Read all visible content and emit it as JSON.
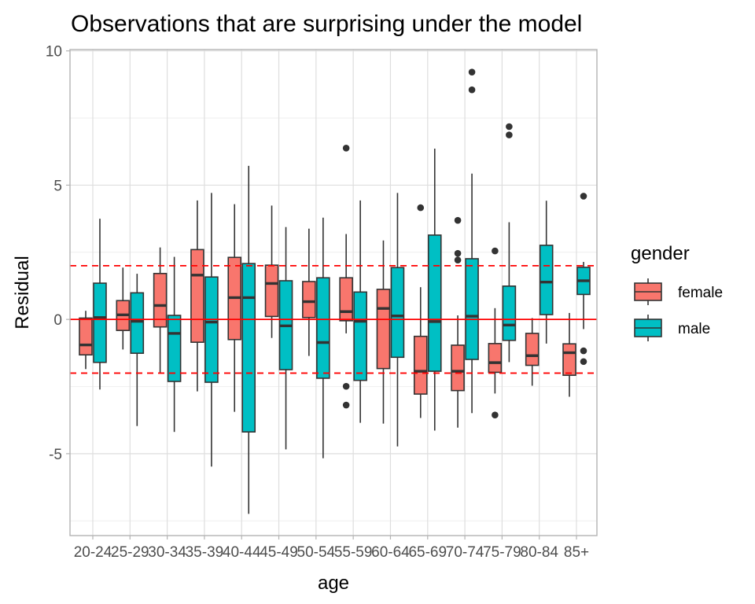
{
  "chart_data": {
    "type": "boxplot",
    "title": "Observations that are surprising under the model",
    "xlabel": "age",
    "ylabel": "Residual",
    "ylim": [
      -8.05,
      10.05
    ],
    "yticks": [
      10,
      5,
      0,
      -5
    ],
    "ytick_labels": [
      "10",
      "5",
      "0",
      "-5"
    ],
    "y_minor_gridlines": [
      7.5,
      2.5,
      -2.5,
      -7.5
    ],
    "grid": true,
    "reference_lines": [
      {
        "value": 0,
        "style": "solid",
        "color": "#ff0000"
      },
      {
        "value": 2,
        "style": "dashed",
        "color": "#ff0000"
      },
      {
        "value": -2,
        "style": "dashed",
        "color": "#ff0000"
      }
    ],
    "categories": [
      "20-24",
      "25-29",
      "30-34",
      "35-39",
      "40-44",
      "45-49",
      "50-54",
      "55-59",
      "60-64",
      "65-69",
      "70-74",
      "75-79",
      "80-84",
      "85+"
    ],
    "legend": {
      "title": "gender",
      "placement": "right",
      "entries": [
        {
          "label": "female",
          "color": "#f8766d"
        },
        {
          "label": "male",
          "color": "#00bfc4"
        }
      ]
    },
    "series": [
      {
        "name": "female",
        "color": "#f8766d",
        "boxes": [
          {
            "whisker_high": 0.32,
            "q3": 0.05,
            "median": -0.95,
            "q1": -1.32,
            "whisker_low": -1.85,
            "outliers": []
          },
          {
            "whisker_high": 1.93,
            "q3": 0.7,
            "median": 0.17,
            "q1": -0.41,
            "whisker_low": -1.12,
            "outliers": []
          },
          {
            "whisker_high": 2.68,
            "q3": 1.71,
            "median": 0.52,
            "q1": -0.28,
            "whisker_low": -2.0,
            "outliers": []
          },
          {
            "whisker_high": 4.43,
            "q3": 2.6,
            "median": 1.65,
            "q1": -0.85,
            "whisker_low": -2.68,
            "outliers": []
          },
          {
            "whisker_high": 4.29,
            "q3": 2.31,
            "median": 0.81,
            "q1": -0.75,
            "whisker_low": -3.44,
            "outliers": []
          },
          {
            "whisker_high": 4.24,
            "q3": 2.02,
            "median": 1.34,
            "q1": 0.11,
            "whisker_low": -0.69,
            "outliers": []
          },
          {
            "whisker_high": 3.38,
            "q3": 1.41,
            "median": 0.66,
            "q1": 0.07,
            "whisker_low": -1.36,
            "outliers": []
          },
          {
            "whisker_high": 3.18,
            "q3": 1.55,
            "median": 0.29,
            "q1": -0.05,
            "whisker_low": -0.52,
            "outliers": [
              6.38,
              -2.49,
              -3.19
            ]
          },
          {
            "whisker_high": 2.94,
            "q3": 1.12,
            "median": 0.41,
            "q1": -1.83,
            "whisker_low": -3.88,
            "outliers": []
          },
          {
            "whisker_high": 1.2,
            "q3": -0.63,
            "median": -1.93,
            "q1": -2.78,
            "whisker_low": -3.67,
            "outliers": [
              4.16
            ]
          },
          {
            "whisker_high": 0.15,
            "q3": -0.96,
            "median": -1.93,
            "q1": -2.65,
            "whisker_low": -4.03,
            "outliers": [
              3.69,
              2.46,
              2.21
            ]
          },
          {
            "whisker_high": 0.42,
            "q3": -0.9,
            "median": -1.61,
            "q1": -1.97,
            "whisker_low": -2.76,
            "outliers": [
              2.55,
              -3.56
            ]
          },
          {
            "whisker_high": 0.05,
            "q3": -0.52,
            "median": -1.35,
            "q1": -1.71,
            "whisker_low": -2.47,
            "outliers": []
          },
          {
            "whisker_high": 0.24,
            "q3": -0.91,
            "median": -1.24,
            "q1": -2.08,
            "whisker_low": -2.88,
            "outliers": []
          }
        ]
      },
      {
        "name": "male",
        "color": "#00bfc4",
        "boxes": [
          {
            "whisker_high": 3.75,
            "q3": 1.35,
            "median": 0.07,
            "q1": -1.6,
            "whisker_low": -2.61,
            "outliers": []
          },
          {
            "whisker_high": 1.7,
            "q3": 0.99,
            "median": -0.07,
            "q1": -1.26,
            "whisker_low": -3.97,
            "outliers": []
          },
          {
            "whisker_high": 2.33,
            "q3": 0.15,
            "median": -0.52,
            "q1": -2.31,
            "whisker_low": -4.19,
            "outliers": []
          },
          {
            "whisker_high": 4.71,
            "q3": 1.58,
            "median": -0.1,
            "q1": -2.34,
            "whisker_low": -5.48,
            "outliers": []
          },
          {
            "whisker_high": 5.72,
            "q3": 2.08,
            "median": 0.81,
            "q1": -4.19,
            "whisker_low": -7.24,
            "outliers": []
          },
          {
            "whisker_high": 3.44,
            "q3": 1.44,
            "median": -0.24,
            "q1": -1.87,
            "whisker_low": -4.84,
            "outliers": []
          },
          {
            "whisker_high": 3.79,
            "q3": 1.55,
            "median": -0.86,
            "q1": -2.19,
            "whisker_low": -5.17,
            "outliers": []
          },
          {
            "whisker_high": 4.43,
            "q3": 1.02,
            "median": -0.07,
            "q1": -2.27,
            "whisker_low": -3.85,
            "outliers": []
          },
          {
            "whisker_high": 4.71,
            "q3": 1.93,
            "median": 0.13,
            "q1": -1.41,
            "whisker_low": -4.73,
            "outliers": []
          },
          {
            "whisker_high": 6.36,
            "q3": 3.14,
            "median": -0.08,
            "q1": -1.93,
            "whisker_low": -4.14,
            "outliers": []
          },
          {
            "whisker_high": 5.43,
            "q3": 2.26,
            "median": 0.12,
            "q1": -1.49,
            "whisker_low": -3.49,
            "outliers": [
              9.21,
              8.55
            ]
          },
          {
            "whisker_high": 3.62,
            "q3": 1.24,
            "median": -0.21,
            "q1": -0.78,
            "whisker_low": -1.59,
            "outliers": [
              7.18,
              6.87
            ]
          },
          {
            "whisker_high": 4.42,
            "q3": 2.76,
            "median": 1.39,
            "q1": 0.18,
            "whisker_low": -0.9,
            "outliers": []
          },
          {
            "whisker_high": 2.14,
            "q3": 1.94,
            "median": 1.44,
            "q1": 0.93,
            "whisker_low": -0.36,
            "outliers": [
              4.59,
              -1.17,
              -1.57
            ]
          }
        ]
      }
    ]
  }
}
